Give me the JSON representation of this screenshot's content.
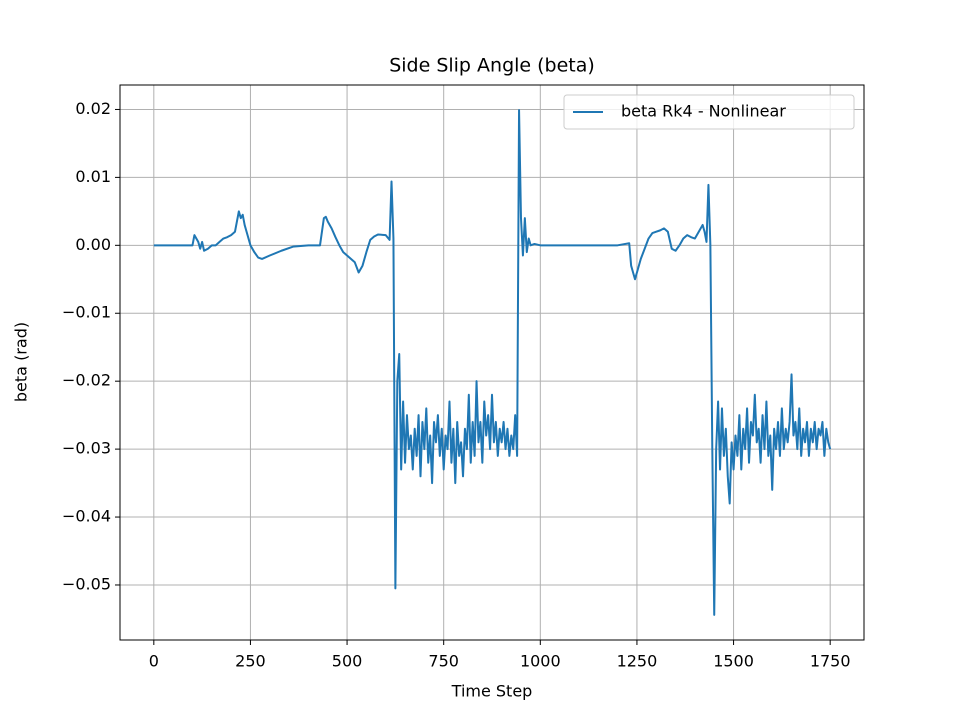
{
  "chart_data": {
    "type": "line",
    "title": "Side Slip Angle (beta)",
    "xlabel": "Time Step",
    "ylabel": "beta (rad)",
    "x": [
      0,
      50,
      100,
      105,
      110,
      115,
      120,
      125,
      130,
      140,
      150,
      160,
      170,
      180,
      190,
      200,
      210,
      220,
      225,
      230,
      235,
      240,
      250,
      260,
      270,
      280,
      300,
      330,
      360,
      400,
      430,
      440,
      445,
      450,
      460,
      470,
      480,
      490,
      500,
      510,
      520,
      530,
      540,
      550,
      560,
      570,
      580,
      600,
      610,
      615,
      620,
      625,
      630,
      635,
      640,
      645,
      650,
      655,
      660,
      665,
      670,
      675,
      680,
      685,
      690,
      695,
      700,
      705,
      710,
      715,
      720,
      725,
      730,
      735,
      740,
      745,
      750,
      755,
      760,
      765,
      770,
      775,
      780,
      785,
      790,
      795,
      800,
      805,
      810,
      815,
      820,
      825,
      830,
      835,
      840,
      845,
      850,
      855,
      860,
      865,
      870,
      875,
      880,
      885,
      890,
      895,
      900,
      905,
      910,
      915,
      920,
      925,
      930,
      935,
      940,
      945,
      950,
      955,
      960,
      965,
      970,
      975,
      985,
      1000,
      1100,
      1200,
      1230,
      1235,
      1240,
      1245,
      1250,
      1260,
      1270,
      1280,
      1290,
      1300,
      1310,
      1320,
      1330,
      1340,
      1350,
      1360,
      1370,
      1380,
      1390,
      1400,
      1410,
      1420,
      1425,
      1430,
      1435,
      1440,
      1445,
      1450,
      1455,
      1460,
      1465,
      1470,
      1475,
      1480,
      1485,
      1490,
      1495,
      1500,
      1505,
      1510,
      1515,
      1520,
      1525,
      1530,
      1535,
      1540,
      1545,
      1550,
      1555,
      1560,
      1565,
      1570,
      1575,
      1580,
      1585,
      1590,
      1595,
      1600,
      1605,
      1610,
      1615,
      1620,
      1625,
      1630,
      1635,
      1640,
      1645,
      1650,
      1655,
      1660,
      1665,
      1670,
      1675,
      1680,
      1685,
      1690,
      1695,
      1700,
      1705,
      1710,
      1715,
      1720,
      1725,
      1730,
      1735,
      1740,
      1745,
      1750
    ],
    "series": [
      {
        "name": "beta Rk4 - Nonlinear",
        "color": "#1f77b4",
        "values": [
          0,
          0,
          0,
          0.0015,
          0.001,
          0.0005,
          -0.0005,
          0.0005,
          -0.0008,
          -0.0005,
          0,
          0,
          0.0005,
          0.001,
          0.0012,
          0.0015,
          0.002,
          0.005,
          0.004,
          0.0045,
          0.003,
          0.002,
          0,
          -0.001,
          -0.0018,
          -0.002,
          -0.0015,
          -0.0008,
          -0.0002,
          0,
          0,
          0.004,
          0.0042,
          0.0035,
          0.0025,
          0.0012,
          0,
          -0.001,
          -0.0015,
          -0.002,
          -0.0025,
          -0.004,
          -0.003,
          -0.001,
          0.0008,
          0.0013,
          0.0016,
          0.0015,
          0.0008,
          0.0094,
          0.001,
          -0.0505,
          -0.02,
          -0.016,
          -0.033,
          -0.023,
          -0.032,
          -0.025,
          -0.03,
          -0.028,
          -0.033,
          -0.027,
          -0.031,
          -0.025,
          -0.034,
          -0.026,
          -0.03,
          -0.024,
          -0.032,
          -0.028,
          -0.035,
          -0.026,
          -0.029,
          -0.025,
          -0.031,
          -0.027,
          -0.033,
          -0.028,
          -0.03,
          -0.023,
          -0.032,
          -0.027,
          -0.035,
          -0.026,
          -0.031,
          -0.029,
          -0.034,
          -0.027,
          -0.03,
          -0.022,
          -0.032,
          -0.026,
          -0.031,
          -0.02,
          -0.029,
          -0.026,
          -0.032,
          -0.023,
          -0.028,
          -0.025,
          -0.03,
          -0.022,
          -0.029,
          -0.026,
          -0.031,
          -0.027,
          -0.029,
          -0.026,
          -0.03,
          -0.027,
          -0.031,
          -0.028,
          -0.03,
          -0.025,
          -0.031,
          0.0199,
          0.004,
          -0.0015,
          0.004,
          -0.001,
          0.001,
          0,
          0.0002,
          0,
          0,
          0,
          0.0003,
          -0.003,
          -0.004,
          -0.005,
          -0.004,
          -0.002,
          -0.0005,
          0.001,
          0.0018,
          0.002,
          0.0022,
          0.0025,
          0.002,
          -0.0005,
          -0.0008,
          0,
          0.001,
          0.0015,
          0.0012,
          0.001,
          0.002,
          0.003,
          0.002,
          0.0005,
          0.0089,
          0,
          -0.03,
          -0.0544,
          -0.03,
          -0.023,
          -0.033,
          -0.024,
          -0.031,
          -0.027,
          -0.034,
          -0.038,
          -0.029,
          -0.033,
          -0.028,
          -0.031,
          -0.025,
          -0.033,
          -0.027,
          -0.03,
          -0.024,
          -0.032,
          -0.026,
          -0.028,
          -0.022,
          -0.029,
          -0.027,
          -0.032,
          -0.025,
          -0.03,
          -0.023,
          -0.031,
          -0.028,
          -0.036,
          -0.027,
          -0.03,
          -0.026,
          -0.031,
          -0.024,
          -0.03,
          -0.027,
          -0.029,
          -0.026,
          -0.019,
          -0.028,
          -0.026,
          -0.03,
          -0.024,
          -0.031,
          -0.027,
          -0.029,
          -0.026,
          -0.031,
          -0.027,
          -0.029,
          -0.026,
          -0.03,
          -0.027,
          -0.028,
          -0.026,
          -0.031,
          -0.027,
          -0.029,
          -0.03
        ]
      }
    ],
    "xlim": [
      -87.5,
      1837.5
    ],
    "ylim": [
      -0.0581,
      0.0236
    ],
    "xticks": [
      0,
      250,
      500,
      750,
      1000,
      1250,
      1500,
      1750
    ],
    "yticks": [
      {
        "value": -0.05,
        "label": "−0.05"
      },
      {
        "value": -0.04,
        "label": "−0.04"
      },
      {
        "value": -0.03,
        "label": "−0.03"
      },
      {
        "value": -0.02,
        "label": "−0.02"
      },
      {
        "value": -0.01,
        "label": "−0.01"
      },
      {
        "value": 0,
        "label": "0.00"
      },
      0.01,
      0.02
    ],
    "grid": true,
    "legend": "upper right"
  }
}
